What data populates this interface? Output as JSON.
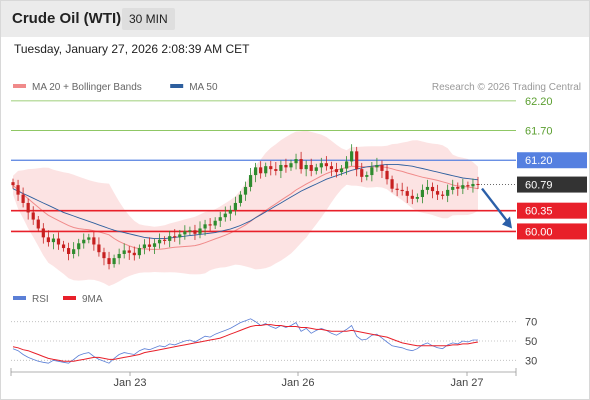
{
  "header": {
    "title": "Crude Oil (WTI)",
    "interval": "30 MIN",
    "timestamp": "Tuesday, January 27, 2026 2:08:39 AM CET"
  },
  "legend": {
    "items": [
      {
        "label": "MA 20 + Bollinger Bands",
        "color": "#f08a8a"
      },
      {
        "label": "MA 50",
        "color": "#2e5f9e"
      }
    ],
    "credit": "Research © 2026 Trading Central"
  },
  "rsi_legend": {
    "items": [
      {
        "label": "RSI",
        "color": "#5b7fd6"
      },
      {
        "label": "9MA",
        "color": "#e8202a"
      }
    ]
  },
  "colors": {
    "up_candle": "#2e8b2e",
    "down_candle": "#c72020",
    "target_line": "#7fbf4f",
    "pivot_line": "#5580e0",
    "support_line": "#e8202a",
    "current_label": "#333333",
    "bollinger_fill": "#fbdcdc",
    "arrow": "#2b5fa8"
  },
  "chart_data": {
    "type": "candlestick",
    "price_ylim": [
      59.35,
      62.35
    ],
    "levels": [
      {
        "value": 62.2,
        "label": "62.20",
        "kind": "target"
      },
      {
        "value": 61.7,
        "label": "61.70",
        "kind": "target"
      },
      {
        "value": 61.2,
        "label": "61.20",
        "kind": "pivot"
      },
      {
        "value": 60.79,
        "label": "60.79",
        "kind": "current"
      },
      {
        "value": 60.35,
        "label": "60.35",
        "kind": "support"
      },
      {
        "value": 60.0,
        "label": "60.00",
        "kind": "support"
      }
    ],
    "x_ticks": [
      "Jan 23",
      "Jan 26",
      "Jan 27"
    ],
    "rsi_ylim": [
      20,
      80
    ],
    "rsi_ticks": [
      70,
      50,
      30
    ],
    "close": [
      60.78,
      60.62,
      60.48,
      60.32,
      60.2,
      60.05,
      59.9,
      59.82,
      59.88,
      59.78,
      59.72,
      59.62,
      59.7,
      59.8,
      59.86,
      59.9,
      59.78,
      59.65,
      59.55,
      59.45,
      59.55,
      59.62,
      59.68,
      59.64,
      59.6,
      59.72,
      59.78,
      59.74,
      59.8,
      59.86,
      59.84,
      59.92,
      59.9,
      59.95,
      60.0,
      60.02,
      59.96,
      60.05,
      60.12,
      60.1,
      60.18,
      60.24,
      60.3,
      60.36,
      60.48,
      60.62,
      60.75,
      60.95,
      61.08,
      60.98,
      61.1,
      61.05,
      61.02,
      61.12,
      61.08,
      61.15,
      61.22,
      61.05,
      61.12,
      61.02,
      61.08,
      61.15,
      61.1,
      61.05,
      61.0,
      61.06,
      61.18,
      61.35,
      61.05,
      60.92,
      60.95,
      61.08,
      61.12,
      61.02,
      60.88,
      60.72,
      60.7,
      60.68,
      60.6,
      60.55,
      60.58,
      60.7,
      60.75,
      60.68,
      60.62,
      60.6,
      60.7,
      60.75,
      60.72,
      60.78,
      60.76,
      60.8,
      60.79
    ],
    "ma50": [
      60.72,
      60.68,
      60.64,
      60.6,
      60.56,
      60.52,
      60.48,
      60.44,
      60.4,
      60.36,
      60.32,
      60.29,
      60.26,
      60.23,
      60.2,
      60.17,
      60.14,
      60.11,
      60.08,
      60.05,
      60.02,
      60.0,
      59.98,
      59.96,
      59.94,
      59.92,
      59.9,
      59.89,
      59.88,
      59.88,
      59.88,
      59.89,
      59.9,
      59.91,
      59.92,
      59.93,
      59.94,
      59.95,
      59.96,
      59.97,
      59.98,
      60.0,
      60.02,
      60.04,
      60.07,
      60.1,
      60.14,
      60.18,
      60.23,
      60.28,
      60.33,
      60.38,
      60.43,
      60.48,
      60.53,
      60.58,
      60.63,
      60.68,
      60.72,
      60.76,
      60.8,
      60.84,
      60.88,
      60.91,
      60.94,
      60.97,
      61.0,
      61.03,
      61.05,
      61.07,
      61.09,
      61.1,
      61.11,
      61.12,
      61.13,
      61.13,
      61.13,
      61.12,
      61.11,
      61.1,
      61.08,
      61.06,
      61.04,
      61.02,
      61.0,
      60.98,
      60.96,
      60.94,
      60.92,
      60.9,
      60.89,
      60.88,
      60.87
    ],
    "rsi": [
      42,
      40,
      36,
      33,
      31,
      29,
      28,
      27,
      30,
      29,
      28,
      27,
      31,
      35,
      37,
      38,
      34,
      31,
      29,
      27,
      32,
      36,
      38,
      37,
      36,
      40,
      42,
      41,
      43,
      45,
      44,
      47,
      46,
      48,
      50,
      51,
      49,
      52,
      55,
      54,
      57,
      59,
      61,
      63,
      66,
      69,
      71,
      73,
      70,
      66,
      68,
      65,
      63,
      66,
      64,
      66,
      69,
      60,
      63,
      58,
      61,
      63,
      61,
      58,
      56,
      59,
      62,
      66,
      55,
      51,
      52,
      56,
      57,
      53,
      49,
      45,
      44,
      43,
      41,
      40,
      42,
      46,
      48,
      45,
      43,
      42,
      46,
      48,
      47,
      50,
      49,
      51,
      51
    ],
    "rsi_ma": [
      44,
      43,
      41,
      40,
      38,
      36,
      34,
      32,
      31,
      30,
      29,
      29,
      29,
      30,
      31,
      32,
      33,
      33,
      32,
      31,
      31,
      32,
      33,
      34,
      35,
      36,
      38,
      39,
      40,
      41,
      42,
      43,
      44,
      45,
      46,
      47,
      48,
      49,
      50,
      51,
      52,
      53,
      55,
      57,
      59,
      61,
      63,
      65,
      66,
      66,
      67,
      67,
      66,
      66,
      65,
      65,
      65,
      64,
      64,
      63,
      62,
      62,
      61,
      60,
      60,
      60,
      60,
      61,
      60,
      59,
      58,
      57,
      56,
      55,
      54,
      52,
      50,
      48,
      47,
      46,
      45,
      45,
      45,
      45,
      45,
      45,
      45,
      46,
      46,
      47,
      47,
      48,
      49
    ]
  }
}
